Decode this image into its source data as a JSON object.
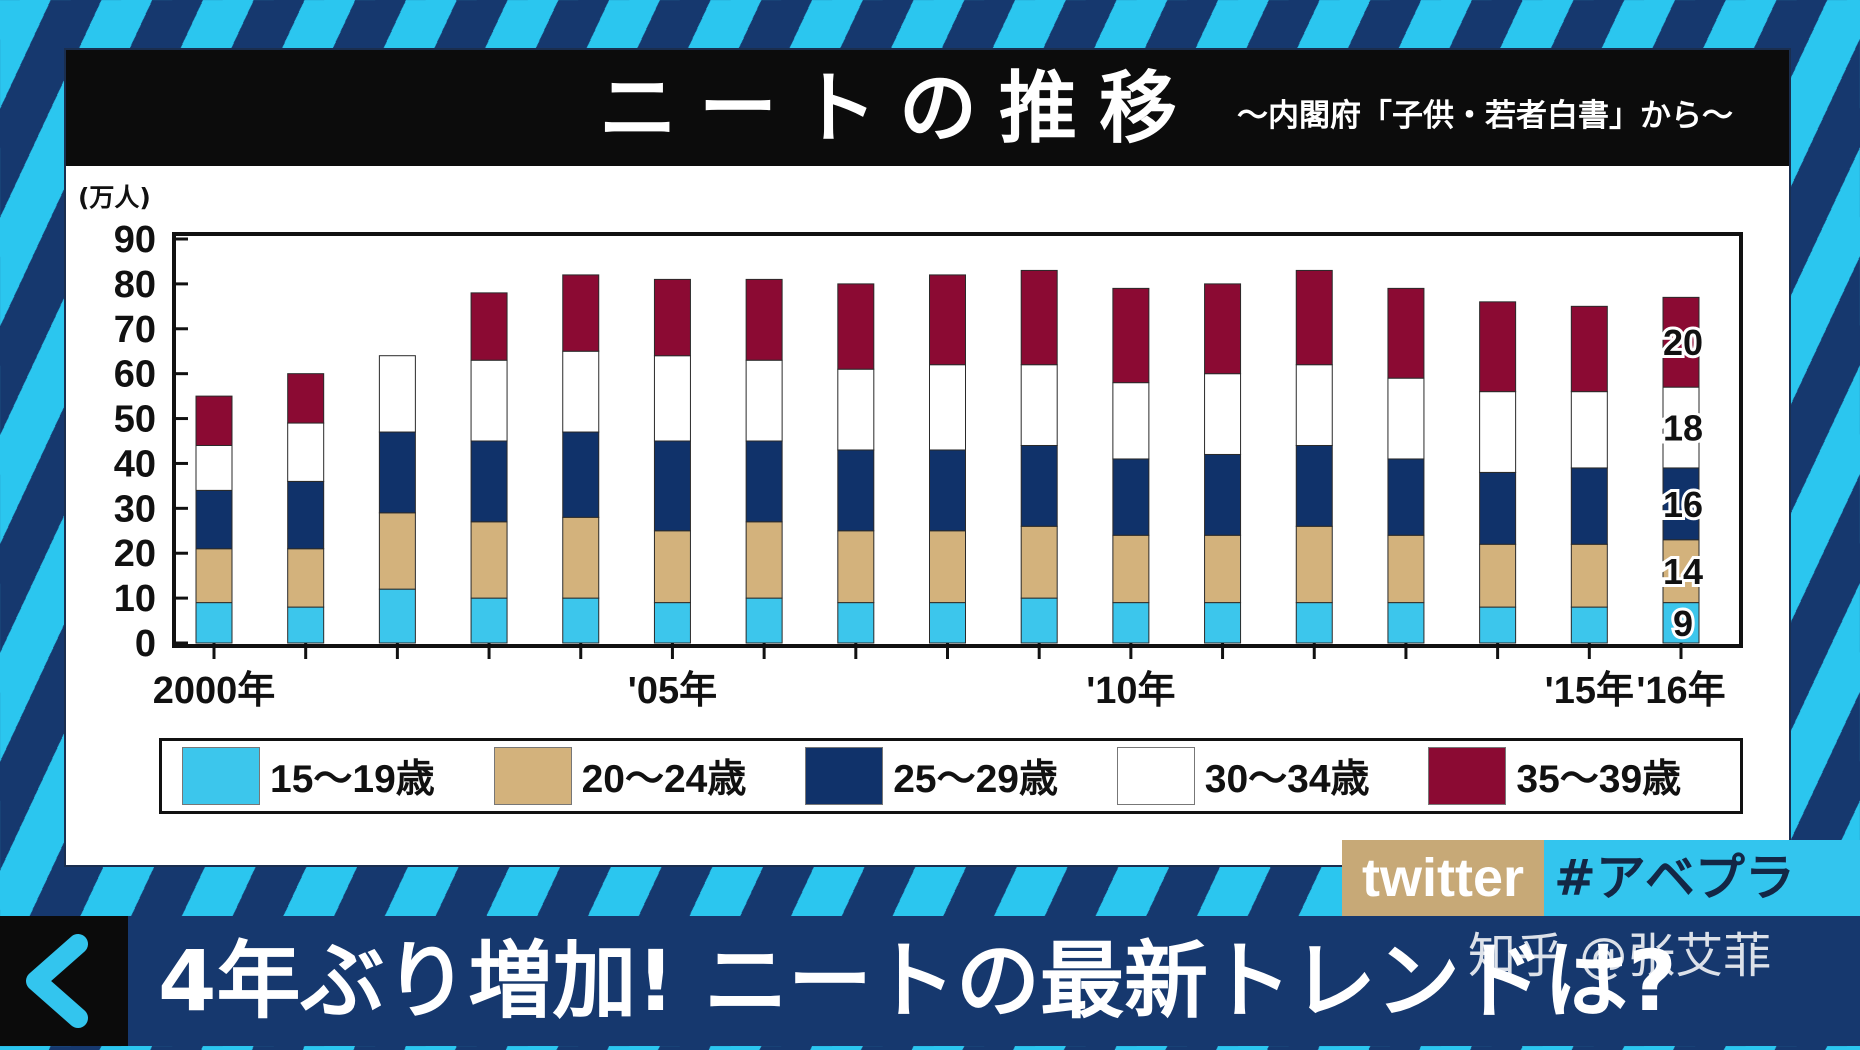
{
  "header": {
    "title": "ニートの推移",
    "subtitle": "〜内閣府「子供・若者白書」から〜"
  },
  "colors": {
    "age_15_19": "#3cc6ec",
    "age_20_24": "#d3b27c",
    "age_25_29": "#10326a",
    "age_30_34": "#ffffff",
    "age_35_39": "#8b0a33"
  },
  "chart_data": {
    "type": "bar",
    "stacked": true,
    "unit_label": "(万人)",
    "ylim": [
      0,
      90
    ],
    "yticks": [
      0,
      10,
      20,
      30,
      40,
      50,
      60,
      70,
      80,
      90
    ],
    "categories": [
      "2000",
      "2001",
      "2002",
      "2003",
      "2004",
      "2005",
      "2006",
      "2007",
      "2008",
      "2009",
      "2010",
      "2011",
      "2012",
      "2013",
      "2014",
      "2015",
      "2016"
    ],
    "x_tick_labels": [
      {
        "category": "2000",
        "label": "2000年"
      },
      {
        "category": "2005",
        "label": "'05年"
      },
      {
        "category": "2010",
        "label": "'10年"
      },
      {
        "category": "2015",
        "label": "'15年"
      },
      {
        "category": "2016",
        "label": "'16年"
      }
    ],
    "series": [
      {
        "name": "15〜19歳",
        "color": "#3cc6ec",
        "values": [
          9,
          8,
          12,
          10,
          10,
          9,
          10,
          9,
          9,
          10,
          9,
          9,
          9,
          9,
          8,
          8,
          9
        ]
      },
      {
        "name": "20〜24歳",
        "color": "#d3b27c",
        "values": [
          12,
          13,
          17,
          17,
          18,
          16,
          17,
          16,
          16,
          16,
          15,
          15,
          17,
          15,
          14,
          14,
          14
        ]
      },
      {
        "name": "25〜29歳",
        "color": "#10326a",
        "values": [
          13,
          15,
          18,
          18,
          19,
          20,
          18,
          18,
          18,
          18,
          17,
          18,
          18,
          17,
          16,
          17,
          16
        ]
      },
      {
        "name": "30〜34歳",
        "color": "#ffffff",
        "values": [
          10,
          13,
          17,
          18,
          18,
          19,
          18,
          18,
          19,
          18,
          17,
          18,
          18,
          18,
          18,
          17,
          18
        ]
      },
      {
        "name": "35〜39歳",
        "color": "#8b0a33",
        "values": [
          11,
          11,
          0,
          15,
          17,
          17,
          18,
          19,
          20,
          21,
          21,
          20,
          21,
          20,
          20,
          19,
          20
        ]
      }
    ],
    "data_labels": [
      {
        "category": "2016",
        "series": "15〜19歳",
        "text": "9"
      },
      {
        "category": "2016",
        "series": "20〜24歳",
        "text": "14"
      },
      {
        "category": "2016",
        "series": "25〜29歳",
        "text": "16"
      },
      {
        "category": "2016",
        "series": "30〜34歳",
        "text": "18"
      },
      {
        "category": "2016",
        "series": "35〜39歳",
        "text": "20"
      }
    ],
    "legend": "bottom"
  },
  "legend_items": [
    {
      "label": "15〜19歳",
      "color": "#3cc6ec"
    },
    {
      "label": "20〜24歳",
      "color": "#d3b27c"
    },
    {
      "label": "25〜29歳",
      "color": "#10326a"
    },
    {
      "label": "30〜34歳",
      "color": "#ffffff"
    },
    {
      "label": "35〜39歳",
      "color": "#8b0a33"
    }
  ],
  "overlay": {
    "twitter_label": "twitter",
    "hashtag": "#アベプラ",
    "headline": "4年ぶり増加! ニートの最新トレンドは?",
    "watermark": "知乎 @张艾菲",
    "back_icon": "chevron-left-icon"
  }
}
